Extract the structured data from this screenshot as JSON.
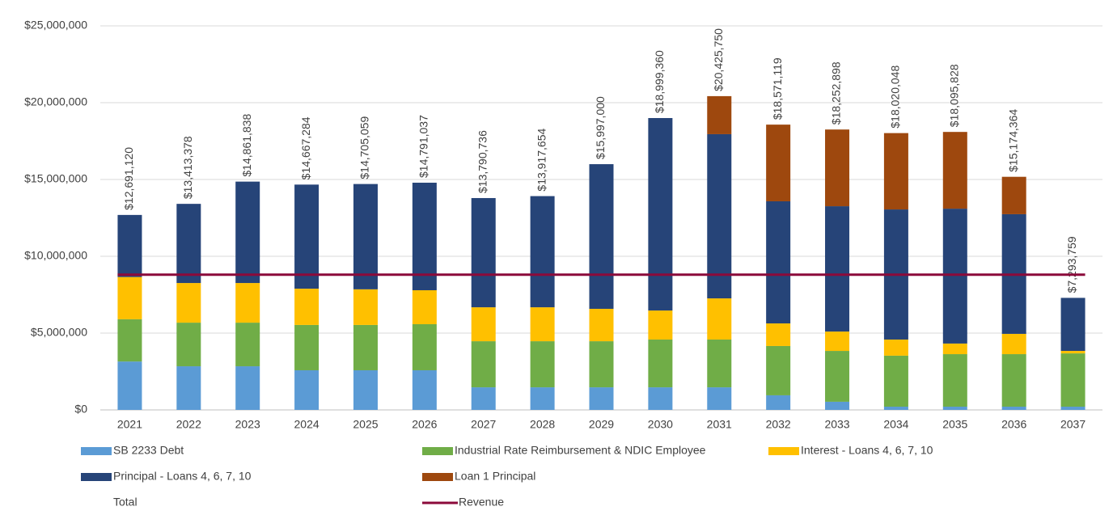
{
  "chart_data": {
    "type": "bar",
    "stacked": true,
    "categories": [
      "2021",
      "2022",
      "2023",
      "2024",
      "2025",
      "2026",
      "2027",
      "2028",
      "2029",
      "2030",
      "2031",
      "2032",
      "2033",
      "2034",
      "2035",
      "2036",
      "2037"
    ],
    "series": [
      {
        "name": "SB 2233 Debt",
        "color": "#5b9bd5",
        "values": [
          3150000,
          2840000,
          2840000,
          2580000,
          2580000,
          2580000,
          1470000,
          1470000,
          1470000,
          1470000,
          1470000,
          950000,
          530000,
          210000,
          210000,
          210000,
          210000
        ]
      },
      {
        "name": "Industrial Rate Reimbursement & NDIC Employee",
        "color": "#70ad47",
        "values": [
          2750000,
          2840000,
          2840000,
          2950000,
          2950000,
          3000000,
          3000000,
          3000000,
          3000000,
          3110000,
          3110000,
          3210000,
          3310000,
          3320000,
          3420000,
          3420000,
          3470000
        ]
      },
      {
        "name": "Interest - Loans 4, 6, 7, 10",
        "color": "#ffc000",
        "values": [
          2750000,
          2580000,
          2580000,
          2360000,
          2320000,
          2210000,
          2210000,
          2210000,
          2110000,
          1890000,
          2680000,
          1470000,
          1260000,
          1050000,
          690000,
          1320000,
          160000
        ]
      },
      {
        "name": "Principal - Loans 4, 6, 7, 10",
        "color": "#264478",
        "values": [
          4041120,
          5153378,
          6601838,
          6777284,
          6855059,
          7001037,
          7110736,
          7237654,
          9417000,
          12529360,
          10690000,
          7950000,
          8160000,
          8470000,
          8780000,
          7790000,
          3453759
        ]
      },
      {
        "name": "Loan 1 Principal",
        "color": "#9e480e",
        "values": [
          0,
          0,
          0,
          0,
          0,
          0,
          0,
          0,
          0,
          0,
          2475750,
          4991119,
          4992898,
          4970048,
          4995828,
          2434364,
          0
        ]
      }
    ],
    "total": {
      "name": "Total",
      "values": [
        12691120,
        13413378,
        14861838,
        14667284,
        14705059,
        14791037,
        13790736,
        13917654,
        15997000,
        18999360,
        20425750,
        18571119,
        18252898,
        18020048,
        18095828,
        15174364,
        7293759
      ],
      "value_labels": [
        "$12,691,120",
        "$13,413,378",
        "$14,861,838",
        "$14,667,284",
        "$14,705,059",
        "$14,791,037",
        "$13,790,736",
        "$13,917,654",
        "$15,997,000",
        "$18,999,360",
        "$20,425,750",
        "$18,571,119",
        "$18,252,898",
        "$18,020,048",
        "$18,095,828",
        "$15,174,364",
        "$7,293,759"
      ]
    },
    "line": {
      "name": "Revenue",
      "color": "#8b0a3a",
      "values": [
        8800000,
        8800000,
        8800000,
        8800000,
        8800000,
        8800000,
        8800000,
        8800000,
        8800000,
        8800000,
        8800000,
        8800000,
        8800000,
        8800000,
        8800000,
        8800000,
        8800000
      ]
    },
    "ylim": [
      0,
      25000000
    ],
    "yticks": [
      {
        "value": 0,
        "label": "$0"
      },
      {
        "value": 5000000,
        "label": "$5,000,000"
      },
      {
        "value": 10000000,
        "label": "$10,000,000"
      },
      {
        "value": 15000000,
        "label": "$15,000,000"
      },
      {
        "value": 20000000,
        "label": "$20,000,000"
      },
      {
        "value": 25000000,
        "label": "$25,000,000"
      }
    ],
    "grid": true
  }
}
